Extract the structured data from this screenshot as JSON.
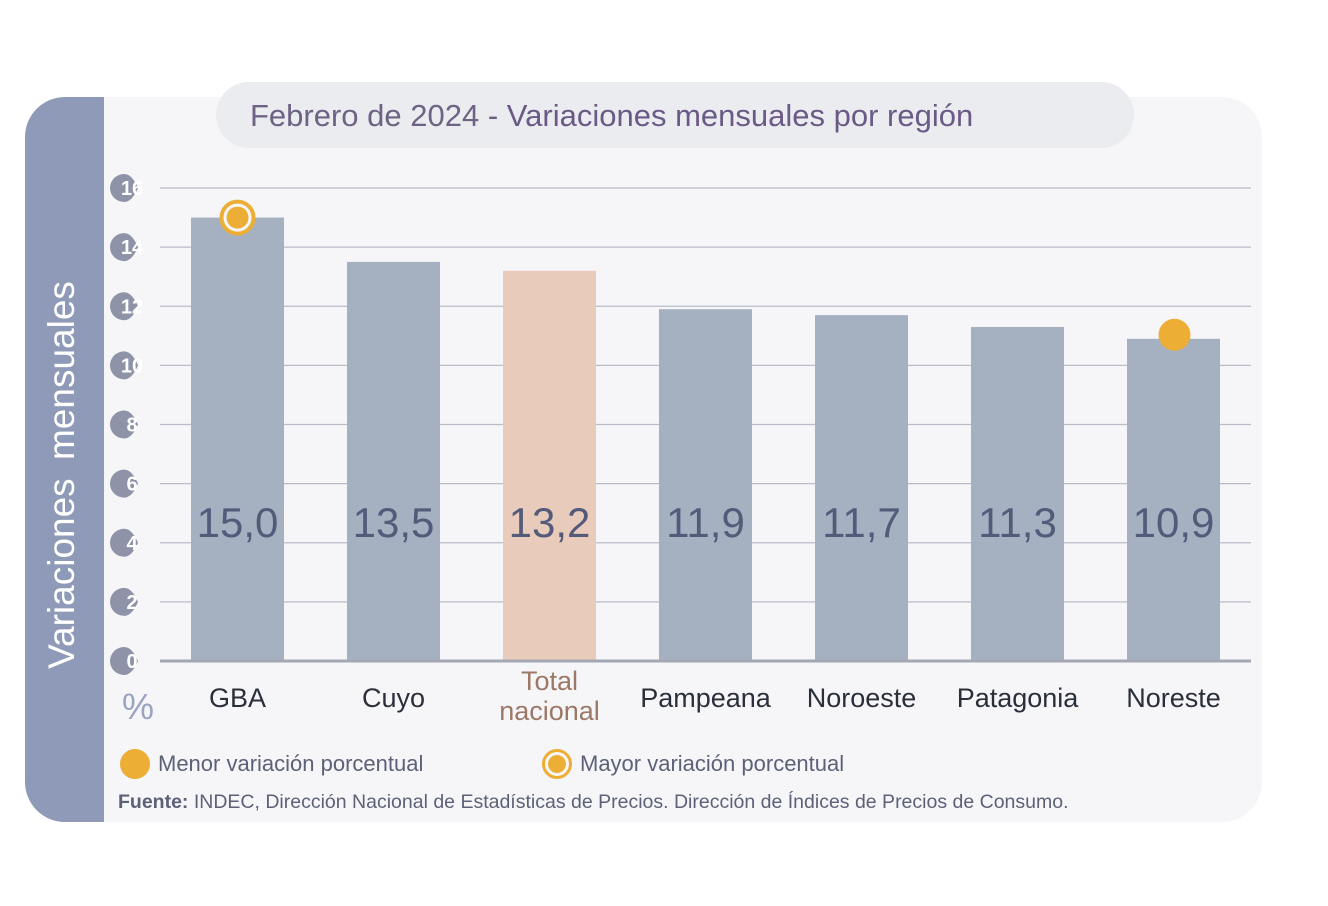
{
  "title": {
    "date": "Febrero de 2024",
    "separator": " - ",
    "main": "Variaciones mensuales por región"
  },
  "colors": {
    "bar": "#a5b0c0",
    "highlight_bar": "#e8cbbb",
    "marker": "#ecae35",
    "side_panel": "#8e9ab7",
    "value_text": "#535a7a",
    "highlight_label": "#9c7866"
  },
  "chart_data": {
    "type": "bar",
    "title": "Febrero de 2024 - Variaciones mensuales por región",
    "ylabel": "Variaciones  mensuales",
    "yunit": "%",
    "ylim": [
      0,
      16
    ],
    "yticks": [
      0,
      2,
      4,
      6,
      8,
      10,
      12,
      14,
      16
    ],
    "grid": true,
    "categories": [
      "GBA",
      "Cuyo",
      "Total nacional",
      "Pampeana",
      "Noroeste",
      "Patagonia",
      "Noreste"
    ],
    "values": [
      15.0,
      13.5,
      13.2,
      11.9,
      11.7,
      11.3,
      10.9
    ],
    "value_labels": [
      "15,0",
      "13,5",
      "13,2",
      "11,9",
      "11,7",
      "11,3",
      "10,9"
    ],
    "highlighted_category": "Total nacional",
    "max_marker_category": "GBA",
    "min_marker_category": "Noreste",
    "legend": {
      "min": "Menor variación porcentual",
      "max": "Mayor variación porcentual"
    }
  },
  "source": {
    "label": "Fuente:",
    "text": " INDEC, Dirección Nacional de Estadísticas de Precios. Dirección de Índices de Precios de Consumo."
  }
}
